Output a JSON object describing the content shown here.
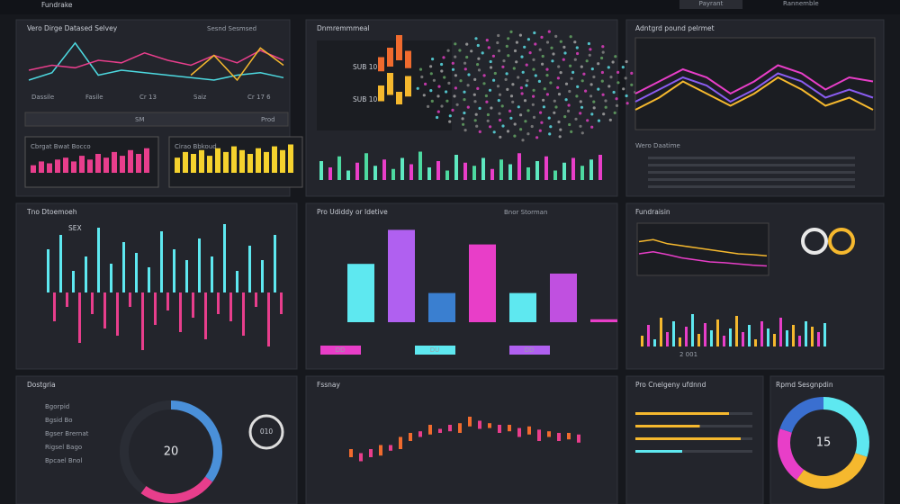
{
  "header": {
    "title": "Fundrake",
    "button": "Payrant",
    "menu": "Rannemble"
  },
  "panels": {
    "line": {
      "title": "Vero Dirge Datased Selvey",
      "badge": "Sesnd Sesmsed",
      "ylim": [
        0,
        100
      ],
      "labels": [
        "Dassile",
        "Fasile",
        "Cr 13",
        "Saiz",
        "Cr 17 6"
      ],
      "series": [
        {
          "color": "#4dd9e0",
          "values": [
            20,
            35,
            95,
            30,
            40,
            35,
            30,
            25,
            20,
            30,
            35,
            25
          ]
        },
        {
          "color": "#e83e8c",
          "values": [
            40,
            50,
            45,
            60,
            55,
            75,
            60,
            50,
            70,
            55,
            80,
            60
          ]
        },
        {
          "color": "#f5b82e",
          "values": [
            null,
            null,
            null,
            null,
            null,
            null,
            null,
            30,
            70,
            20,
            85,
            50
          ]
        }
      ],
      "tabs": [
        "SM",
        "Prod"
      ],
      "cards": [
        {
          "title": "Cbrgat Bwat Bocco",
          "color": "#e83e8c",
          "values": [
            20,
            30,
            25,
            35,
            40,
            30,
            45,
            35,
            50,
            40,
            55,
            45,
            60,
            50,
            65
          ]
        },
        {
          "title": "Cirao Bbkoud",
          "color": "#f5d22e",
          "values": [
            40,
            55,
            50,
            60,
            45,
            65,
            55,
            70,
            60,
            50,
            65,
            55,
            70,
            60,
            75
          ]
        }
      ]
    },
    "map": {
      "title": "Dnmremmmeal",
      "labels": [
        "SUB 10",
        "SUB 10"
      ],
      "ylim": [
        0,
        100
      ],
      "summary": [
        {
          "color": "#f06b2e",
          "values": [
            45,
            60,
            80,
            55
          ]
        },
        {
          "color": "#f5b82e",
          "values": [
            50,
            70,
            40,
            65
          ]
        }
      ],
      "hist": [
        60,
        40,
        75,
        30,
        55,
        85,
        45,
        65,
        35,
        70,
        50,
        90,
        40,
        60,
        30,
        80,
        55,
        45,
        70,
        35,
        65,
        50,
        85,
        40,
        60,
        75,
        30,
        55,
        70,
        45,
        65,
        80
      ]
    },
    "waves": {
      "title": "Adntgrd pound pelrmet",
      "subtitle": "Wero Daatime",
      "ylim": [
        0,
        100
      ],
      "series": [
        {
          "color": "#e83ec8",
          "values": [
            40,
            55,
            70,
            60,
            40,
            55,
            75,
            65,
            45,
            60,
            55
          ]
        },
        {
          "color": "#f5b82e",
          "values": [
            20,
            35,
            55,
            40,
            25,
            40,
            60,
            45,
            25,
            35,
            20
          ]
        },
        {
          "color": "#8a5cf0",
          "values": [
            30,
            45,
            60,
            50,
            30,
            45,
            65,
            55,
            35,
            45,
            35
          ]
        }
      ]
    },
    "candles": {
      "title": "Tno Dtoemoeh",
      "label": "SEX",
      "ylim": [
        -100,
        100
      ],
      "values": [
        60,
        -40,
        80,
        -20,
        30,
        -70,
        50,
        -30,
        90,
        -50,
        40,
        -60,
        70,
        -20,
        55,
        -80,
        35,
        -45,
        85,
        -25,
        60,
        -55,
        45,
        -35,
        75,
        -65,
        50,
        -30,
        95,
        -40,
        30,
        -60,
        65,
        -20,
        45,
        -75,
        80,
        -30
      ]
    },
    "bars": {
      "title": "Pro Udiddy or Idetive",
      "badge": "Bnor Storman",
      "ylim": [
        0,
        100
      ],
      "values": [
        60,
        95,
        30,
        80,
        30,
        50,
        3
      ],
      "colors": [
        "#5ee8f0",
        "#b060f0",
        "#3a7fd0",
        "#e83ec8",
        "#5ee8f0",
        "#c050e0",
        "#e83ec8"
      ],
      "keys": [
        {
          "label": "DD",
          "color": "#e83ec8"
        },
        {
          "label": "DU",
          "color": "#5ee8f0"
        },
        {
          "label": "DD",
          "color": "#b060f0"
        }
      ]
    },
    "trend": {
      "title": "Fundraisin",
      "ylim": [
        0,
        100
      ],
      "text": "2 001",
      "series": [
        {
          "color": "#f5b82e",
          "values": [
            70,
            75,
            65,
            60,
            55,
            50,
            45,
            40,
            38,
            35
          ]
        },
        {
          "color": "#e83ec8",
          "values": [
            40,
            45,
            38,
            30,
            25,
            20,
            18,
            15,
            12,
            10
          ]
        }
      ],
      "mini": [
        30,
        60,
        20,
        80,
        40,
        70,
        25,
        55,
        90,
        35,
        65,
        45,
        75,
        30,
        50,
        85,
        40,
        60,
        20,
        70,
        50,
        35,
        80,
        45,
        60,
        30,
        70,
        55,
        40,
        65
      ]
    },
    "donut": {
      "title": "Dostgria",
      "center": "20",
      "ring": "010",
      "items": [
        "Bgorpid",
        "Bgsid Bo",
        "Bgser Brernat",
        "Rigsel Bago",
        "Bpcael Bnol"
      ],
      "segments": [
        {
          "color": "#4a90d9",
          "value": 35
        },
        {
          "color": "#e83e8c",
          "value": 25
        },
        {
          "color": "#2a2d35",
          "value": 40
        }
      ]
    },
    "ohlc": {
      "title": "Fssnay",
      "ylim": [
        0,
        100
      ],
      "items": [
        [
          30,
          40
        ],
        [
          35,
          25
        ],
        [
          40,
          30
        ],
        [
          32,
          45
        ],
        [
          45,
          38
        ],
        [
          40,
          55
        ],
        [
          50,
          60
        ],
        [
          62,
          55
        ],
        [
          58,
          70
        ],
        [
          65,
          60
        ],
        [
          70,
          62
        ],
        [
          60,
          72
        ],
        [
          68,
          80
        ],
        [
          75,
          65
        ],
        [
          66,
          72
        ],
        [
          70,
          60
        ],
        [
          62,
          70
        ],
        [
          66,
          55
        ],
        [
          58,
          68
        ],
        [
          64,
          50
        ],
        [
          55,
          62
        ],
        [
          60,
          50
        ],
        [
          52,
          60
        ],
        [
          58,
          48
        ]
      ]
    },
    "progress": {
      "title": "Pro Cnelgeny ufdnnd",
      "values": [
        80,
        55,
        90,
        40
      ],
      "colors": [
        "#f5b82e",
        "#f5b82e",
        "#f5b82e",
        "#5ee8f0"
      ]
    },
    "donut2": {
      "title": "Rpmd Sesgnpdin",
      "center": "15",
      "segments": [
        {
          "color": "#5ee8f0",
          "value": 30
        },
        {
          "color": "#f5b82e",
          "value": 30
        },
        {
          "color": "#e83ec8",
          "value": 20
        },
        {
          "color": "#3a6fd0",
          "value": 20
        }
      ]
    }
  }
}
